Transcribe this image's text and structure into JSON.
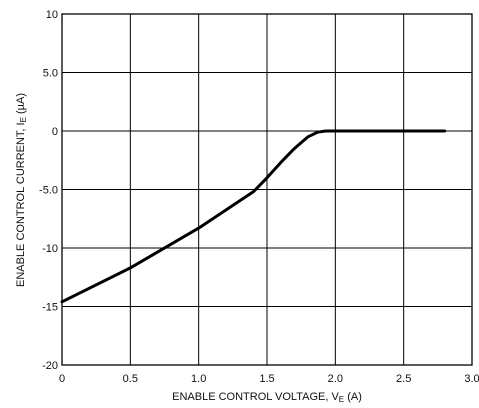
{
  "chart_data": {
    "type": "line",
    "xlabel": "ENABLE CONTROL VOLTAGE, V",
    "xlabel_sub": "E",
    "xlabel_unit": " (A)",
    "ylabel": "ENABLE CONTROL CURRENT, I",
    "ylabel_sub": "E",
    "ylabel_unit": " (µA)",
    "xlim": [
      0,
      3.0
    ],
    "ylim": [
      -20,
      10
    ],
    "grid": true,
    "x_ticks": [
      0,
      0.5,
      1.0,
      1.5,
      2.0,
      2.5,
      3.0
    ],
    "x_tick_labels": [
      "0",
      "0.5",
      "1.0",
      "1.5",
      "2.0",
      "2.5",
      "3.0"
    ],
    "y_ticks": [
      10,
      5,
      0,
      -5,
      -10,
      -15,
      -20
    ],
    "y_tick_labels": [
      "10",
      "5.0",
      "0",
      "-5.0",
      "-10",
      "-15",
      "-20"
    ],
    "series": [
      {
        "x": [
          0,
          0.5,
          1.0,
          1.4,
          1.5,
          1.6,
          1.7,
          1.8,
          1.87,
          1.93,
          2.2,
          2.5,
          2.8
        ],
        "y": [
          -14.6,
          -11.7,
          -8.3,
          -5.2,
          -4.0,
          -2.7,
          -1.5,
          -0.5,
          -0.1,
          0,
          0,
          0,
          0
        ]
      }
    ]
  }
}
